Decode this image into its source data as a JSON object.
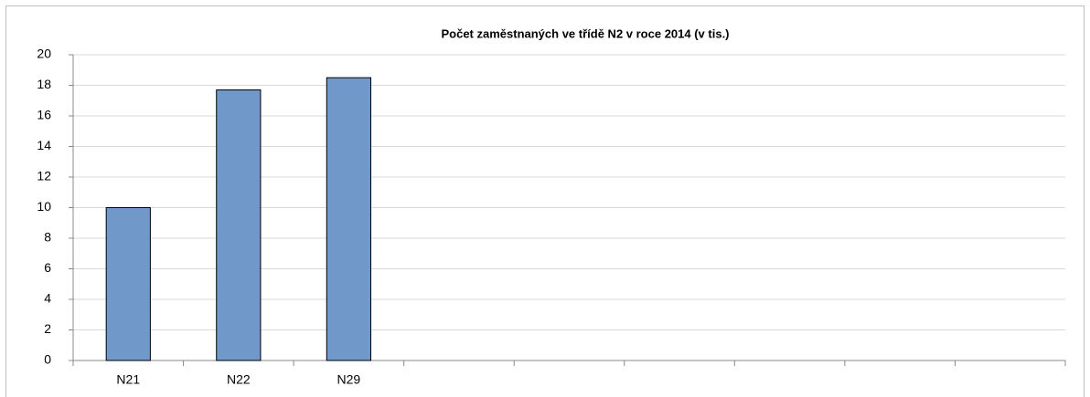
{
  "chart_data": {
    "type": "bar",
    "title": "Počet zaměstnaných ve třídě N2 v roce 2014 (v tis.)",
    "categories": [
      "N21",
      "N22",
      "N29",
      null,
      null,
      null,
      null,
      null,
      null
    ],
    "values": [
      10,
      17.7,
      18.5,
      null,
      null,
      null,
      null,
      null,
      null
    ],
    "color": "#7098c9",
    "ylim": [
      0,
      20
    ],
    "yticks": [
      0,
      2,
      4,
      6,
      8,
      10,
      12,
      14,
      16,
      18,
      20
    ],
    "grid": true
  }
}
